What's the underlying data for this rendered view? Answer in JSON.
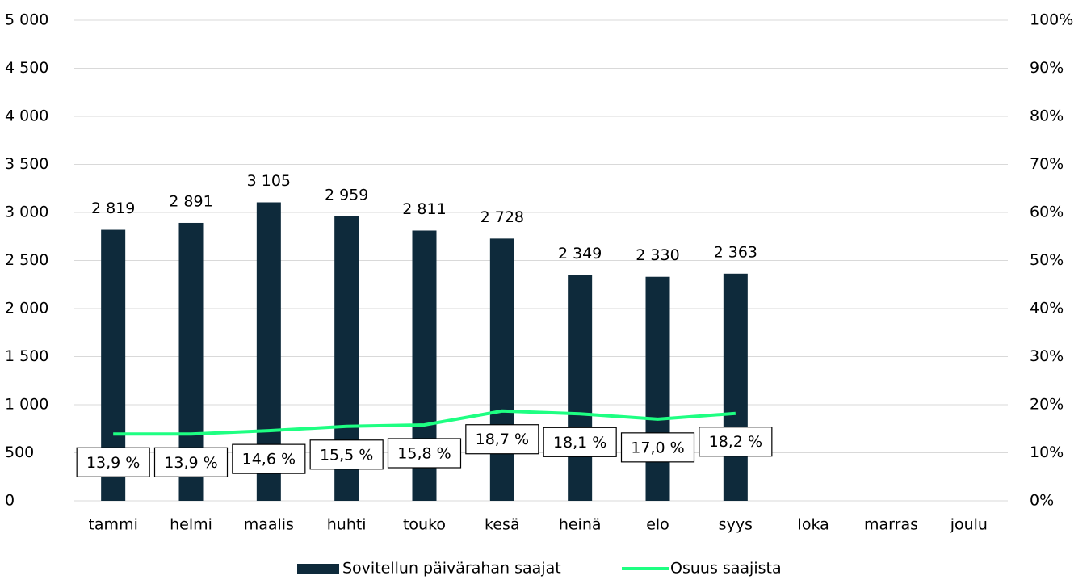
{
  "chart_data": {
    "type": "bar_line",
    "categories": [
      "tammi",
      "helmi",
      "maalis",
      "huhti",
      "touko",
      "kesä",
      "heinä",
      "elo",
      "syys",
      "loka",
      "marras",
      "joulu"
    ],
    "series": [
      {
        "name": "Sovitellun päivärahan saajat",
        "type": "bar",
        "color": "#0e2a3b",
        "values": [
          2819,
          2891,
          3105,
          2959,
          2811,
          2728,
          2349,
          2330,
          2363,
          null,
          null,
          null
        ],
        "value_labels": [
          "2 819",
          "2 891",
          "3 105",
          "2 959",
          "2 811",
          "2 728",
          "2 349",
          "2 330",
          "2 363",
          null,
          null,
          null
        ]
      },
      {
        "name": "Osuus saajista",
        "type": "line",
        "axis": "y2",
        "color": "#1eff82",
        "values": [
          13.9,
          13.9,
          14.6,
          15.5,
          15.8,
          18.7,
          18.1,
          17.0,
          18.2,
          null,
          null,
          null
        ],
        "value_labels": [
          "13,9 %",
          "13,9 %",
          "14,6 %",
          "15,5 %",
          "15,8 %",
          "18,7 %",
          "18,1 %",
          "17,0 %",
          "18,2 %",
          null,
          null,
          null
        ]
      }
    ],
    "ylim": [
      0,
      5000
    ],
    "yticks": [
      0,
      500,
      {
        "value": 1000,
        "label": "1 000"
      },
      {
        "value": 1500,
        "label": "1 500"
      },
      {
        "value": 2000,
        "label": "2 000"
      },
      {
        "value": 2500,
        "label": "2 500"
      },
      {
        "value": 3000,
        "label": "3 000"
      },
      {
        "value": 3500,
        "label": "3 500"
      },
      {
        "value": 4000,
        "label": "4 000"
      },
      {
        "value": 4500,
        "label": "4 500"
      },
      {
        "value": 5000,
        "label": "5 000"
      }
    ],
    "y2lim": [
      0,
      100
    ],
    "y2ticks": [
      {
        "value": 0,
        "label": "0%"
      },
      {
        "value": 10,
        "label": "10%"
      },
      {
        "value": 20,
        "label": "20%"
      },
      {
        "value": 30,
        "label": "30%"
      },
      {
        "value": 40,
        "label": "40%"
      },
      {
        "value": 50,
        "label": "50%"
      },
      {
        "value": 60,
        "label": "60%"
      },
      {
        "value": 70,
        "label": "70%"
      },
      {
        "value": 80,
        "label": "80%"
      },
      {
        "value": 90,
        "label": "90%"
      },
      {
        "value": 100,
        "label": "100%"
      }
    ],
    "grid": true,
    "legend": "bottom"
  }
}
